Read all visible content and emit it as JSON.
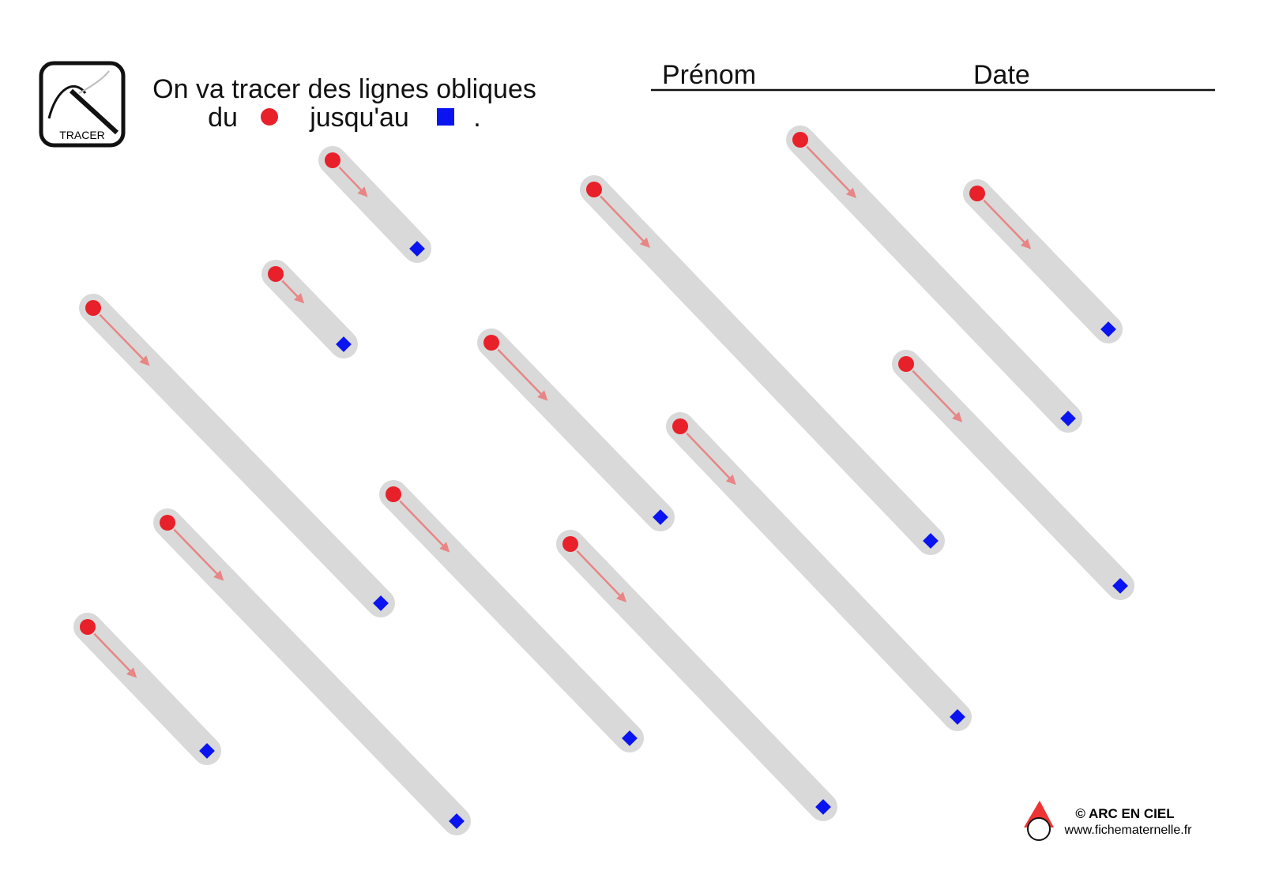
{
  "header": {
    "icon_label": "TRACER",
    "instruction_line1": "On va tracer des lignes obliques",
    "instruction_du": "du",
    "instruction_jusquau": "jusqu'au",
    "instruction_end": ".",
    "name_label": "Prénom",
    "date_label": "Date"
  },
  "footer": {
    "copyright": "© ARC EN CIEL",
    "website": "www.fichematernelle.fr"
  }
}
